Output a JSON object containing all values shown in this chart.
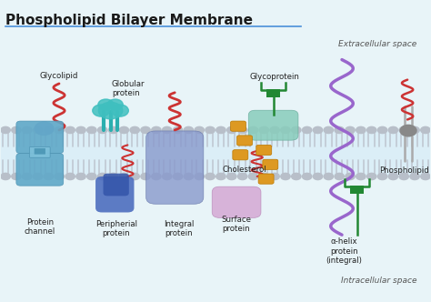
{
  "title": "Phospholipid Bilayer Membrane",
  "bg_color": "#e8f4f8",
  "title_color": "#1a1a1a",
  "bilayer_fill": "#d6eaf5",
  "extracellular_label": "Extracellular space",
  "intracellular_label": "Intracellular space",
  "underline_color": "#4a90d9",
  "membrane_head_color": "#b8bfc9",
  "membrane_tail_color": "#c0c8d2",
  "glycolipid_squiggle_color": "#cc3333",
  "protein_channel_color": "#5fa8c8",
  "globular_color": "#3fbfbf",
  "peripheral_color": "#4466bb",
  "integral_color": "#8899cc",
  "cholesterol_color": "#dd9922",
  "glycoprotein_color": "#88ccbb",
  "surface_protein_color": "#d4a8d4",
  "alpha_helix_color": "#9966cc",
  "phospholipid_head_color": "#888888",
  "green_color": "#228833"
}
